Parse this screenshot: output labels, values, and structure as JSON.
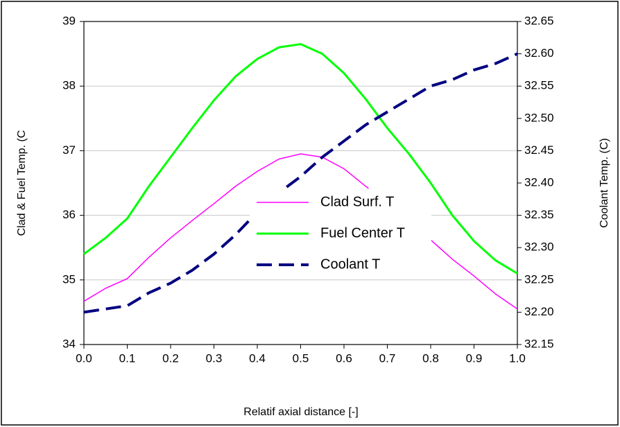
{
  "chart_data": {
    "type": "line",
    "xlabel": "Relatif axial distance [-]",
    "ylabel": "Clad & Fuel Temp. (C",
    "y2label": "Coolant Temp. (C)",
    "x": [
      0,
      0.05,
      0.1,
      0.15,
      0.2,
      0.25,
      0.3,
      0.35,
      0.4,
      0.45,
      0.5,
      0.55,
      0.6,
      0.65,
      0.7,
      0.75,
      0.8,
      0.85,
      0.9,
      0.95,
      1.0
    ],
    "series": [
      {
        "name": "Clad Surf. T",
        "color": "#ff00ff",
        "style": "solid",
        "values": [
          34.67,
          34.87,
          35.02,
          35.35,
          35.65,
          35.92,
          36.18,
          36.45,
          36.68,
          36.87,
          36.95,
          36.9,
          36.72,
          36.45,
          36.18,
          35.9,
          35.62,
          35.32,
          35.06,
          34.78,
          34.55
        ]
      },
      {
        "name": "Fuel Center T",
        "color": "#00ff00",
        "style": "solid",
        "values": [
          35.4,
          35.65,
          35.95,
          36.45,
          36.9,
          37.35,
          37.78,
          38.15,
          38.42,
          38.6,
          38.65,
          38.5,
          38.2,
          37.8,
          37.35,
          36.95,
          36.5,
          36.0,
          35.6,
          35.3,
          35.1
        ]
      },
      {
        "name": "Coolant T",
        "color": "#000080",
        "style": "dashed",
        "axis": "y2",
        "values": [
          32.2,
          32.205,
          32.21,
          32.23,
          32.245,
          32.265,
          32.29,
          32.32,
          32.355,
          32.385,
          32.41,
          32.44,
          32.465,
          32.49,
          32.51,
          32.53,
          32.55,
          32.56,
          32.575,
          32.585,
          32.6
        ]
      }
    ],
    "xlim": [
      0,
      1
    ],
    "xticks": [
      {
        "value": 0,
        "label": "0.0"
      },
      0.1,
      0.2,
      0.3,
      0.4,
      0.5,
      0.6,
      0.7,
      0.8,
      0.9,
      {
        "value": 1,
        "label": "1.0"
      }
    ],
    "ylim": [
      34,
      39
    ],
    "yticks": [
      34,
      35,
      36,
      37,
      38,
      39
    ],
    "y2lim": [
      32.15,
      32.65
    ],
    "y2ticks": [
      32.15,
      {
        "value": 32.2,
        "label": "32.20"
      },
      32.25,
      {
        "value": 32.3,
        "label": "32.30"
      },
      32.35,
      {
        "value": 32.4,
        "label": "32.40"
      },
      32.45,
      {
        "value": 32.5,
        "label": "32.50"
      },
      32.55,
      {
        "value": 32.6,
        "label": "32.60"
      },
      32.65
    ],
    "grid": true
  }
}
